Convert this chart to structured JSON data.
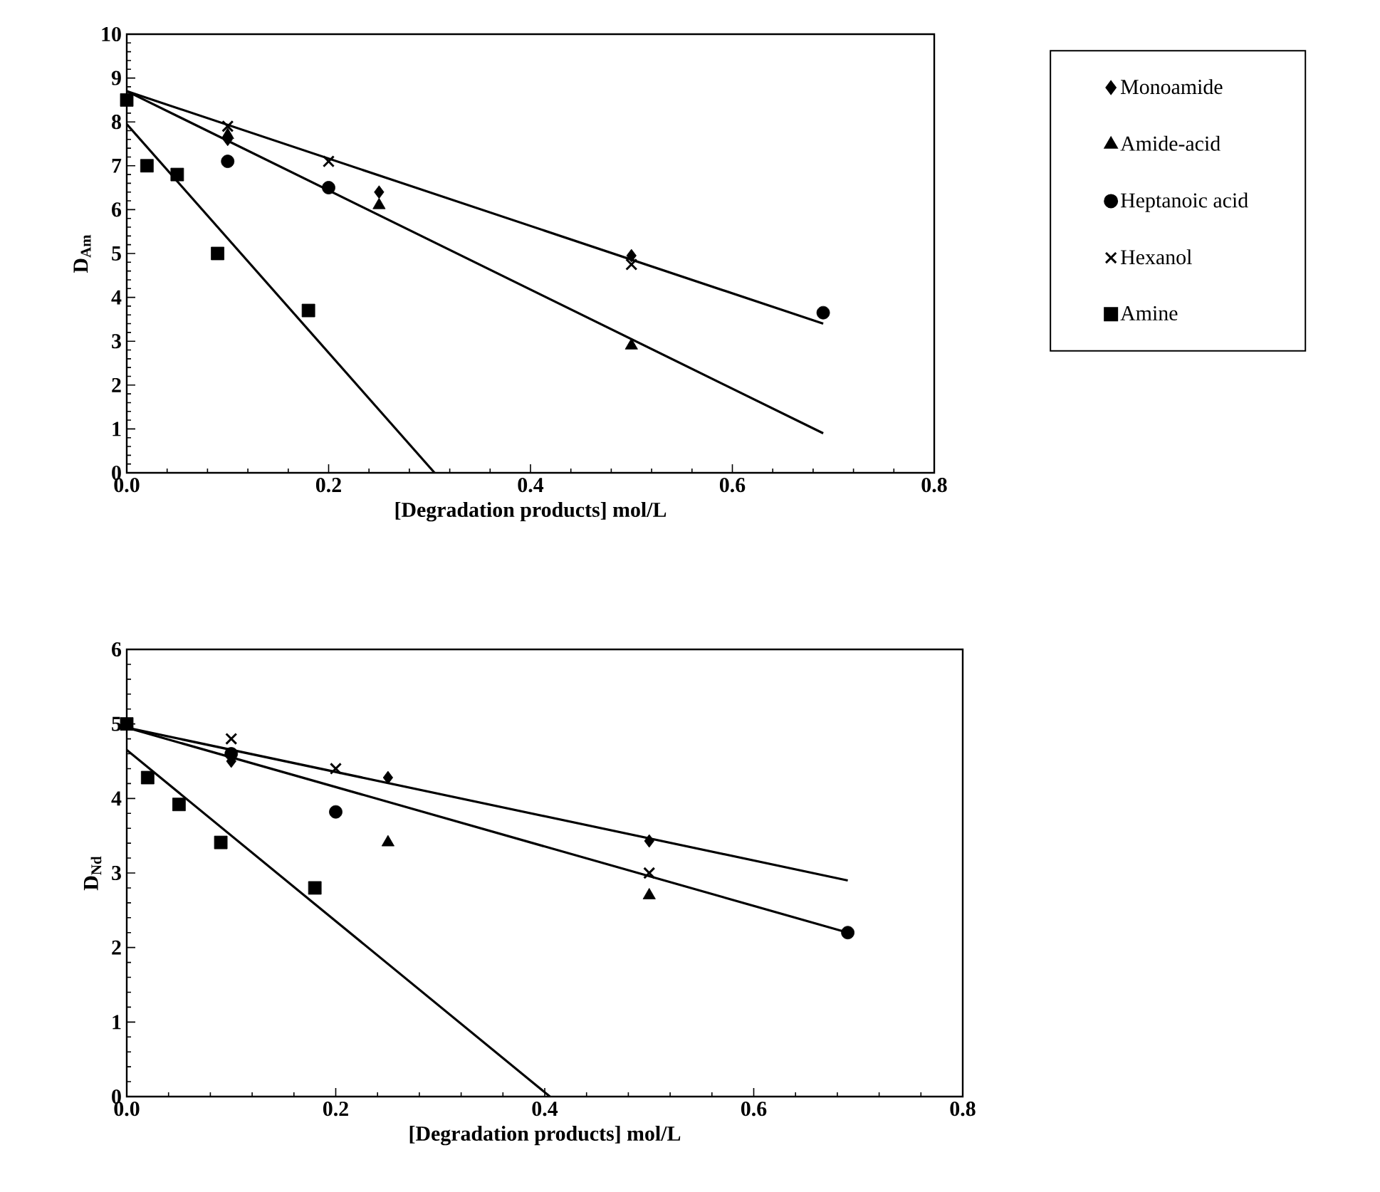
{
  "chart_data": [
    {
      "type": "scatter",
      "xlabel": "[Degradation products] mol/L",
      "ylabel": "D$_{Am}$",
      "xlim": [
        0,
        0.8
      ],
      "ylim": [
        0,
        10
      ],
      "xticks": [
        {
          "value": 0,
          "label": "0.0"
        },
        {
          "value": 0.2,
          "label": "0.2"
        },
        {
          "value": 0.4,
          "label": "0.4"
        },
        {
          "value": 0.6,
          "label": "0.6"
        },
        {
          "value": 0.8,
          "label": "0.8"
        }
      ],
      "yticks": [
        0,
        1,
        2,
        3,
        4,
        5,
        6,
        7,
        8,
        9,
        10
      ],
      "grid": false,
      "legend": "right",
      "series": [
        {
          "name": "Monoamide",
          "color": "#000000",
          "marker": "diamond",
          "x": [
            0.1,
            0.25,
            0.5
          ],
          "values": [
            7.6,
            6.4,
            4.95
          ]
        },
        {
          "name": "Amide-acid",
          "color": "#000000",
          "marker": "triangle",
          "x": [
            0.1,
            0.25,
            0.5
          ],
          "values": [
            7.7,
            6.1,
            2.9
          ]
        },
        {
          "name": "Heptanoic acid",
          "color": "#000000",
          "marker": "circle",
          "x": [
            0.1,
            0.2,
            0.69
          ],
          "values": [
            7.1,
            6.5,
            3.65
          ]
        },
        {
          "name": "Hexanol",
          "color": "#000000",
          "marker": "cross",
          "x": [
            0.1,
            0.2,
            0.5
          ],
          "values": [
            7.9,
            7.1,
            4.75
          ]
        },
        {
          "name": "Amine",
          "color": "#000000",
          "marker": "square",
          "x": [
            0,
            0.02,
            0.05,
            0.09,
            0.18
          ],
          "values": [
            8.5,
            7.0,
            6.8,
            5.0,
            3.7
          ]
        },
        {
          "type": "line",
          "color": "#000000",
          "marker": "none",
          "x": [
            0,
            0.69
          ],
          "values": [
            8.7,
            3.4
          ]
        },
        {
          "type": "line",
          "color": "#000000",
          "marker": "none",
          "x": [
            0,
            0.69
          ],
          "values": [
            8.7,
            0.9
          ]
        },
        {
          "type": "line",
          "color": "#000000",
          "marker": "none",
          "x": [
            0,
            0.305
          ],
          "values": [
            7.95,
            0
          ]
        }
      ]
    },
    {
      "type": "scatter",
      "xlabel": "[Degradation products] mol/L",
      "ylabel": "D$_{Nd}$",
      "xlim": [
        0,
        0.8
      ],
      "ylim": [
        0,
        6
      ],
      "xticks": [
        {
          "value": 0,
          "label": "0.0"
        },
        {
          "value": 0.2,
          "label": "0.2"
        },
        {
          "value": 0.4,
          "label": "0.4"
        },
        {
          "value": 0.6,
          "label": "0.6"
        },
        {
          "value": 0.8,
          "label": "0.8"
        }
      ],
      "yticks": [
        0,
        1,
        2,
        3,
        4,
        5,
        6
      ],
      "grid": false,
      "series": [
        {
          "color": "#000000",
          "marker": "diamond",
          "x": [
            0.1,
            0.25,
            0.5
          ],
          "values": [
            4.5,
            4.28,
            3.43
          ]
        },
        {
          "color": "#000000",
          "marker": "triangle",
          "x": [
            0.25,
            0.5
          ],
          "values": [
            3.41,
            2.7
          ]
        },
        {
          "color": "#000000",
          "marker": "circle",
          "x": [
            0.1,
            0.2,
            0.69
          ],
          "values": [
            4.6,
            3.82,
            2.2
          ]
        },
        {
          "color": "#000000",
          "marker": "cross",
          "x": [
            0.1,
            0.2,
            0.5
          ],
          "values": [
            4.8,
            4.4,
            3.0
          ]
        },
        {
          "color": "#000000",
          "marker": "square",
          "x": [
            0,
            0.02,
            0.05,
            0.09,
            0.18
          ],
          "values": [
            5.0,
            4.28,
            3.92,
            3.41,
            2.8
          ]
        },
        {
          "type": "line",
          "color": "#000000",
          "marker": "none",
          "x": [
            0,
            0.69
          ],
          "values": [
            4.95,
            2.9
          ]
        },
        {
          "type": "line",
          "color": "#000000",
          "marker": "none",
          "x": [
            0,
            0.69
          ],
          "values": [
            4.95,
            2.2
          ]
        },
        {
          "type": "line",
          "color": "#000000",
          "marker": "none",
          "x": [
            0,
            0.405
          ],
          "values": [
            4.65,
            0
          ]
        }
      ]
    }
  ]
}
